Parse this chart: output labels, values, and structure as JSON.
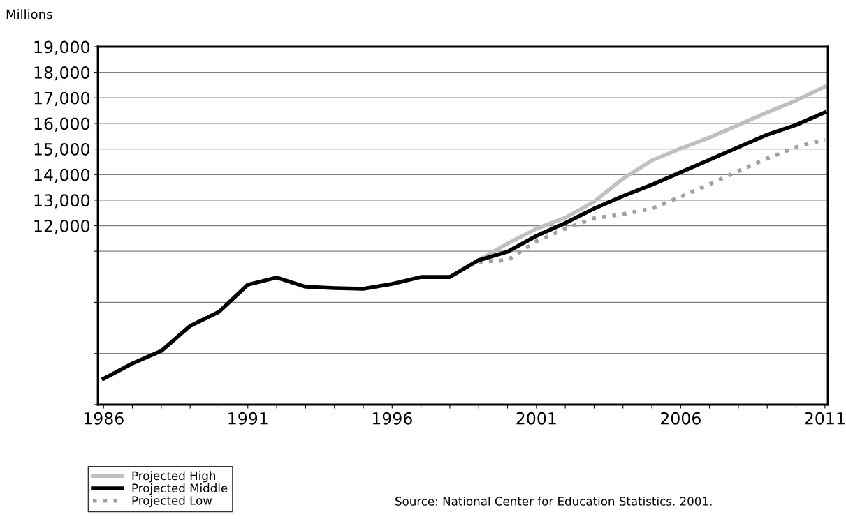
{
  "chart_data": {
    "type": "line",
    "ylabel": "Millions",
    "x": [
      1986,
      1987,
      1988,
      1989,
      1990,
      1991,
      1992,
      1993,
      1994,
      1995,
      1996,
      1997,
      1998,
      1999,
      2000,
      2001,
      2002,
      2003,
      2004,
      2005,
      2006,
      2007,
      2008,
      2009,
      2010,
      2011
    ],
    "series": [
      {
        "name": "Projected High",
        "color": "#c0c0c0",
        "line_style": "solid",
        "values": [
          null,
          null,
          null,
          null,
          null,
          null,
          null,
          null,
          null,
          null,
          null,
          null,
          null,
          10650,
          11300,
          11880,
          12310,
          12940,
          13840,
          14550,
          15020,
          15450,
          15940,
          16430,
          16900,
          17440
        ]
      },
      {
        "name": "Projected Middle",
        "color": "#000000",
        "line_style": "solid",
        "values": [
          6010,
          6610,
          7100,
          8080,
          8630,
          9690,
          9970,
          9610,
          9560,
          9530,
          9720,
          9990,
          9990,
          10650,
          10980,
          11600,
          12100,
          12670,
          13160,
          13600,
          14090,
          14580,
          15070,
          15560,
          15940,
          16430
        ]
      },
      {
        "name": "Projected Low",
        "color": "#a0a0a0",
        "line_style": "dotted",
        "values": [
          null,
          null,
          null,
          null,
          null,
          null,
          null,
          null,
          null,
          null,
          null,
          null,
          null,
          10590,
          10650,
          11390,
          11880,
          12290,
          12450,
          12670,
          13130,
          13620,
          14140,
          14630,
          15070,
          15370
        ]
      }
    ],
    "xlim": [
      1985.8,
      2011.1
    ],
    "xticks": [
      1986,
      {
        "value": 1987,
        "label": null
      },
      {
        "value": 1988,
        "label": null
      },
      {
        "value": 1989,
        "label": null
      },
      {
        "value": 1990,
        "label": null
      },
      1991,
      {
        "value": 1992,
        "label": null
      },
      {
        "value": 1993,
        "label": null
      },
      {
        "value": 1994,
        "label": null
      },
      {
        "value": 1995,
        "label": null
      },
      1996,
      {
        "value": 1997,
        "label": null
      },
      {
        "value": 1998,
        "label": null
      },
      {
        "value": 1999,
        "label": null
      },
      {
        "value": 2000,
        "label": null
      },
      2001,
      {
        "value": 2002,
        "label": null
      },
      {
        "value": 2003,
        "label": null
      },
      {
        "value": 2004,
        "label": null
      },
      {
        "value": 2005,
        "label": null
      },
      2006,
      {
        "value": 2007,
        "label": null
      },
      {
        "value": 2008,
        "label": null
      },
      {
        "value": 2009,
        "label": null
      },
      {
        "value": 2010,
        "label": null
      },
      2011
    ],
    "ylim": [
      5000,
      19000
    ],
    "yticks": [
      {
        "value": 5000,
        "label": null
      },
      {
        "value": 7000,
        "label": null
      },
      {
        "value": 9000,
        "label": null
      },
      {
        "value": 11000,
        "label": null
      },
      {
        "value": 12000,
        "label": "12,000"
      },
      {
        "value": 13000,
        "label": "13,000"
      },
      {
        "value": 14000,
        "label": "14,000"
      },
      {
        "value": 15000,
        "label": "15,000"
      },
      {
        "value": 16000,
        "label": "16,000"
      },
      {
        "value": 17000,
        "label": "17,000"
      },
      {
        "value": 18000,
        "label": "18,000"
      },
      {
        "value": 19000,
        "label": "19,000"
      }
    ],
    "grid": "y",
    "legend": "bottom left",
    "marker": "none",
    "annotations": [
      "Source: National Center for Education Statistics. 2001."
    ]
  }
}
